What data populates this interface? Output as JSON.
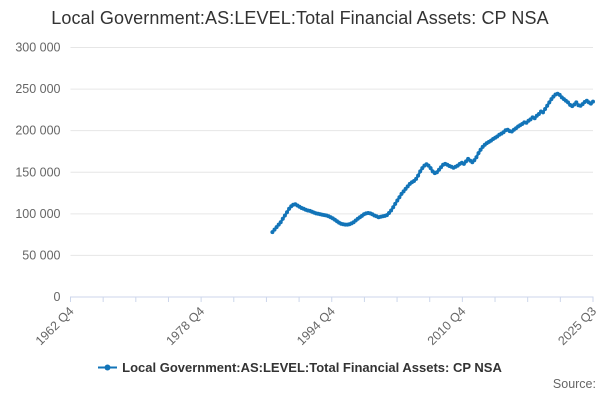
{
  "footer": {
    "source_label": "Source:"
  },
  "colors": {
    "series_blue": "#1274b8",
    "axis_line": "#ccd6eb",
    "gridline": "#e6e6e6",
    "tick_label": "#666666",
    "title_text": "#333333",
    "legend_text": "#333333",
    "source_text": "#666666"
  },
  "chart_data": {
    "type": "line",
    "title": "Local Government:AS:LEVEL:Total Financial Assets: CP NSA",
    "grid": true,
    "legend_position": "bottom",
    "x_axis": {
      "start": "1962 Q4",
      "end": "2025 Q3",
      "tick_count": 17,
      "label_ticks": [
        "1962 Q4",
        "1978 Q4",
        "1994 Q4",
        "2010 Q4",
        "2025 Q3"
      ],
      "label_rotation_deg": -45
    },
    "y_axis": {
      "min": 0,
      "max": 300000,
      "tick_interval": 50000,
      "tick_labels": [
        "0",
        "50 000",
        "100 000",
        "150 000",
        "200 000",
        "250 000",
        "300 000"
      ]
    },
    "series": [
      {
        "name": "Local Government:AS:LEVEL:Total Financial Assets: CP NSA",
        "color": "#1274b8",
        "start": "1987 Q1",
        "frequency": "quarterly",
        "values": [
          78000,
          81000,
          84000,
          87000,
          90000,
          94000,
          98000,
          102000,
          106000,
          109000,
          111000,
          111500,
          110000,
          108500,
          107000,
          106000,
          105000,
          104000,
          103500,
          102500,
          101500,
          100500,
          100000,
          99500,
          99000,
          98500,
          98000,
          97000,
          96000,
          94500,
          93000,
          91000,
          89500,
          88000,
          87500,
          87000,
          87000,
          87500,
          88500,
          90000,
          92000,
          94000,
          96000,
          97500,
          99500,
          100500,
          101000,
          100500,
          99500,
          98000,
          97000,
          96000,
          96500,
          97000,
          97500,
          98500,
          101000,
          104000,
          108000,
          112000,
          116000,
          120000,
          124000,
          127000,
          130000,
          133000,
          136000,
          138000,
          139500,
          142000,
          146000,
          151000,
          155000,
          158000,
          159500,
          158000,
          155000,
          151000,
          149000,
          150000,
          153000,
          156000,
          159000,
          160000,
          159000,
          157500,
          156500,
          155500,
          156500,
          158000,
          160000,
          161500,
          160000,
          163000,
          166000,
          164000,
          162000,
          164500,
          168000,
          173000,
          177000,
          180500,
          183000,
          185000,
          186500,
          188000,
          190000,
          191500,
          193000,
          195000,
          196500,
          198000,
          200500,
          201000,
          199500,
          199000,
          201000,
          203000,
          205000,
          206500,
          208000,
          210000,
          209500,
          212000,
          213500,
          216000,
          215000,
          218000,
          220000,
          223000,
          222000,
          226000,
          230000,
          234000,
          238000,
          241000,
          243500,
          244500,
          243000,
          240000,
          238000,
          236000,
          234000,
          231000,
          229500,
          231500,
          234000,
          230500,
          230000,
          232000,
          234500,
          236000,
          234000,
          232500,
          235000
        ]
      }
    ]
  }
}
